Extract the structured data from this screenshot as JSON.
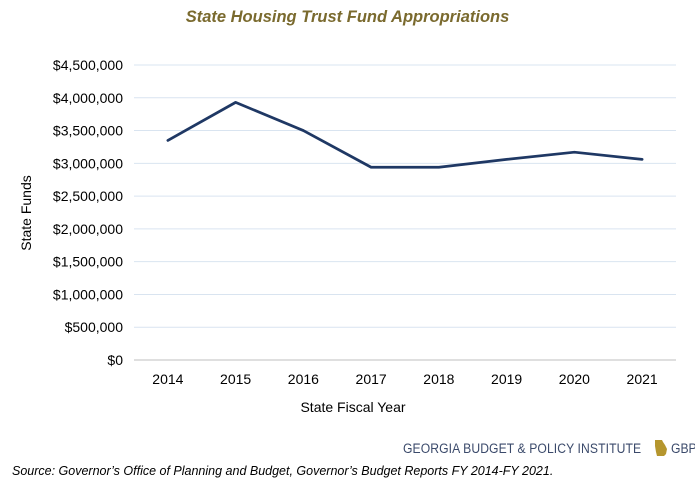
{
  "chart_data": {
    "type": "line",
    "title": "State Housing Trust Fund Appropriations",
    "xlabel": "State Fiscal Year",
    "ylabel": "State Funds",
    "categories": [
      "2014",
      "2015",
      "2016",
      "2017",
      "2018",
      "2019",
      "2020",
      "2021"
    ],
    "series": [
      {
        "values": [
          3350000,
          3930000,
          3500000,
          2940000,
          2940000,
          3060000,
          3170000,
          3060000
        ]
      }
    ],
    "ylim": [
      0,
      4500000
    ],
    "ytick_labels": [
      "$0",
      "$500,000",
      "$1,000,000",
      "$1,500,000",
      "$2,000,000",
      "$2,500,000",
      "$3,000,000",
      "$3,500,000",
      "$4,000,000",
      "$4,500,000"
    ],
    "grid": true,
    "legend": "none",
    "line_color": "#1f3864"
  },
  "branding": {
    "org_name": "GEORGIA BUDGET & POLICY INSTITUTE",
    "site": "GBPI.org",
    "mark_icon": "georgia-state-shape-icon",
    "mark_color": "#b5962e"
  },
  "source_note": "Source: Governor’s Office of Planning and Budget, Governor’s Budget Reports FY 2014-FY 2021."
}
